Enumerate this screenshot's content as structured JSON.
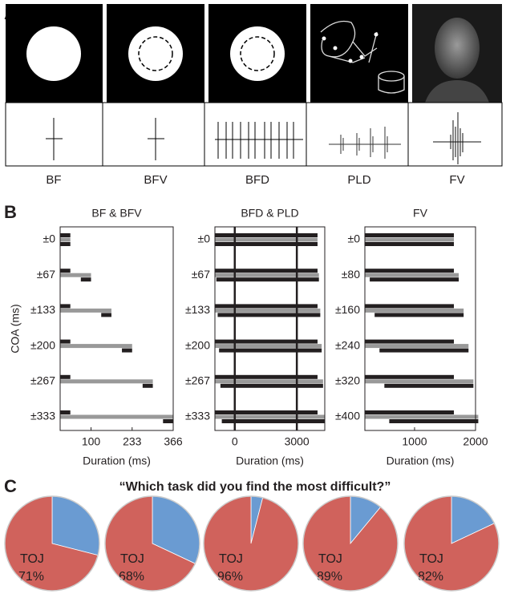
{
  "panel_labels": [
    "A",
    "B",
    "C"
  ],
  "stimuli": {
    "labels": [
      "BF",
      "BFV",
      "BFD",
      "PLD",
      "FV"
    ]
  },
  "survey_title": "“Which task did you find the most difficult?”",
  "chart_data": [
    {
      "type": "bar",
      "horizontal": true,
      "title": "BF & BFV",
      "ylabel": "COA (ms)",
      "xlabel": "Duration (ms)",
      "categories": [
        "±0",
        "±67",
        "±133",
        "±200",
        "±267",
        "±333"
      ],
      "series": [
        {
          "color": "#231f20",
          "start": [
            0,
            0,
            0,
            0,
            0,
            0
          ],
          "end": [
            33,
            33,
            33,
            33,
            33,
            33
          ]
        },
        {
          "color": "#999999",
          "start": [
            0,
            0,
            0,
            0,
            0,
            0
          ],
          "end": [
            33,
            100,
            166,
            233,
            300,
            366
          ]
        },
        {
          "color": "#231f20",
          "start": [
            0,
            67,
            133,
            200,
            267,
            333
          ],
          "end": [
            33,
            100,
            166,
            233,
            300,
            366
          ]
        }
      ],
      "xlim": [
        0,
        366
      ],
      "xticks": [
        100,
        233,
        366
      ],
      "grid": false
    },
    {
      "type": "bar",
      "horizontal": true,
      "title": "BFD & PLD",
      "xlabel": "Duration (ms)",
      "categories": [
        "±0",
        "±67",
        "±133",
        "±200",
        "±267",
        "±333"
      ],
      "series": [
        {
          "color": "#231f20",
          "start": [
            -960,
            -960,
            -960,
            -960,
            -960,
            -960
          ],
          "end": [
            4000,
            4000,
            4000,
            4000,
            4000,
            4000
          ]
        },
        {
          "color": "#999999",
          "start": [
            -960,
            -960,
            -960,
            -960,
            -960,
            -960
          ],
          "end": [
            4000,
            4067,
            4133,
            4200,
            4267,
            4333
          ]
        },
        {
          "color": "#231f20",
          "start": [
            -960,
            -893,
            -827,
            -760,
            -693,
            -627
          ],
          "end": [
            4000,
            4067,
            4133,
            4200,
            4267,
            4333
          ]
        }
      ],
      "xlim": [
        -960,
        4350
      ],
      "xticks": [
        0,
        3000
      ],
      "grid": true
    },
    {
      "type": "bar",
      "horizontal": true,
      "title": "FV",
      "xlabel": "Duration (ms)",
      "categories": [
        "±0",
        "±80",
        "±160",
        "±240",
        "±320",
        "±400"
      ],
      "series": [
        {
          "color": "#231f20",
          "start": [
            185,
            185,
            185,
            185,
            185,
            185
          ],
          "end": [
            1645,
            1645,
            1645,
            1645,
            1645,
            1645
          ]
        },
        {
          "color": "#999999",
          "start": [
            185,
            185,
            185,
            185,
            185,
            185
          ],
          "end": [
            1645,
            1725,
            1805,
            1885,
            1965,
            2045
          ]
        },
        {
          "color": "#231f20",
          "start": [
            185,
            265,
            345,
            425,
            505,
            585
          ],
          "end": [
            1645,
            1725,
            1805,
            1885,
            1965,
            2045
          ]
        }
      ],
      "xlim": [
        185,
        2000
      ],
      "xticks": [
        1000,
        2000
      ],
      "grid": false
    },
    {
      "type": "pie",
      "categories": [
        null,
        "TOJ"
      ],
      "values": [
        29,
        71
      ],
      "value_labels": [
        null,
        "71%"
      ],
      "colors": [
        "#6a9bd2",
        "#d0625c"
      ]
    },
    {
      "type": "pie",
      "categories": [
        null,
        "TOJ"
      ],
      "values": [
        32,
        68
      ],
      "value_labels": [
        null,
        "68%"
      ],
      "colors": [
        "#6a9bd2",
        "#d0625c"
      ]
    },
    {
      "type": "pie",
      "categories": [
        null,
        "TOJ"
      ],
      "values": [
        4,
        96
      ],
      "value_labels": [
        null,
        "96%"
      ],
      "colors": [
        "#6a9bd2",
        "#d0625c"
      ]
    },
    {
      "type": "pie",
      "categories": [
        null,
        "TOJ"
      ],
      "values": [
        11,
        89
      ],
      "value_labels": [
        null,
        "89%"
      ],
      "colors": [
        "#6a9bd2",
        "#d0625c"
      ]
    },
    {
      "type": "pie",
      "categories": [
        null,
        "TOJ"
      ],
      "values": [
        18,
        82
      ],
      "value_labels": [
        null,
        "82%"
      ],
      "colors": [
        "#6a9bd2",
        "#d0625c"
      ]
    }
  ]
}
